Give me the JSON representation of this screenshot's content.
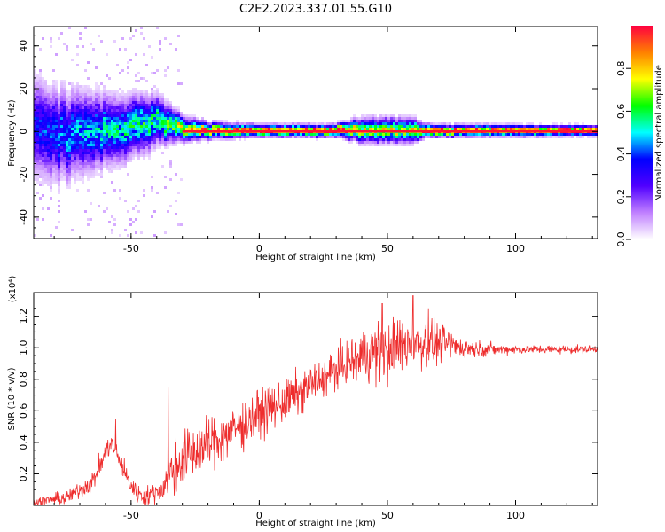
{
  "figure": {
    "title": "C2E2.2023.337.01.55.G10"
  },
  "chart_data": [
    {
      "type": "heatmap",
      "title": "",
      "xlabel": "Height of straight line (km)",
      "ylabel": "Frequency (Hz)",
      "xlim": [
        -88,
        132
      ],
      "ylim": [
        -50,
        49
      ],
      "x_ticks": [
        -50,
        0,
        50,
        100
      ],
      "y_ticks": [
        -40,
        -20,
        0,
        20,
        40
      ],
      "grid": false,
      "colorbar": {
        "label": "Normalized spectral amplitude",
        "range": [
          0,
          1
        ],
        "ticks": [
          "0.0",
          "0.2",
          "0.4",
          "0.6",
          "0.8"
        ],
        "colormap": [
          "#ffffff",
          "#c080ff",
          "#5000ff",
          "#0000ff",
          "#00ffff",
          "#00ff00",
          "#ffff00",
          "#ff8000",
          "#ff0040"
        ]
      },
      "ridge": [
        {
          "x": -88,
          "center": 0,
          "spread": 12,
          "peak": 0.35
        },
        {
          "x": -70,
          "center": -2,
          "spread": 10,
          "peak": 0.45
        },
        {
          "x": -55,
          "center": 0,
          "spread": 8,
          "peak": 0.5
        },
        {
          "x": -45,
          "center": 3,
          "spread": 7,
          "peak": 0.55
        },
        {
          "x": -40,
          "center": 5,
          "spread": 6,
          "peak": 0.55
        },
        {
          "x": -30,
          "center": 1,
          "spread": 3,
          "peak": 0.75
        },
        {
          "x": -20,
          "center": 0,
          "spread": 2,
          "peak": 0.85
        },
        {
          "x": 0,
          "center": 0,
          "spread": 1.5,
          "peak": 0.9
        },
        {
          "x": 30,
          "center": 0,
          "spread": 1.5,
          "peak": 0.95
        },
        {
          "x": 40,
          "center": 0,
          "spread": 3,
          "peak": 0.7
        },
        {
          "x": 60,
          "center": 0,
          "spread": 3,
          "peak": 0.7
        },
        {
          "x": 65,
          "center": 0,
          "spread": 1.5,
          "peak": 0.95
        },
        {
          "x": 132,
          "center": 0,
          "spread": 1.2,
          "peak": 1.0
        }
      ]
    },
    {
      "type": "line",
      "title": "",
      "xlabel": "Height of straight line (km)",
      "ylabel": "SNR (10 * v/v)",
      "y_multiplier_label": "(x10⁴)",
      "xlim": [
        -88,
        132
      ],
      "ylim": [
        0,
        1.35
      ],
      "x_ticks": [
        -50,
        0,
        50,
        100
      ],
      "y_ticks": [
        0.2,
        0.4,
        0.6,
        0.8,
        1.0,
        1.2
      ],
      "grid": false,
      "series": [
        {
          "color": "#ee2d2d",
          "baseline": [
            {
              "x": -88,
              "y": 0.02
            },
            {
              "x": -75,
              "y": 0.05
            },
            {
              "x": -65,
              "y": 0.15
            },
            {
              "x": -58,
              "y": 0.4
            },
            {
              "x": -55,
              "y": 0.3
            },
            {
              "x": -50,
              "y": 0.12
            },
            {
              "x": -45,
              "y": 0.05
            },
            {
              "x": -38,
              "y": 0.1
            },
            {
              "x": -35,
              "y": 0.2
            },
            {
              "x": -30,
              "y": 0.3
            },
            {
              "x": -20,
              "y": 0.38
            },
            {
              "x": -10,
              "y": 0.48
            },
            {
              "x": 0,
              "y": 0.58
            },
            {
              "x": 10,
              "y": 0.66
            },
            {
              "x": 20,
              "y": 0.76
            },
            {
              "x": 30,
              "y": 0.86
            },
            {
              "x": 40,
              "y": 0.95
            },
            {
              "x": 50,
              "y": 1.0
            },
            {
              "x": 60,
              "y": 1.03
            },
            {
              "x": 70,
              "y": 1.03
            },
            {
              "x": 80,
              "y": 1.0
            },
            {
              "x": 90,
              "y": 0.99
            },
            {
              "x": 110,
              "y": 0.99
            },
            {
              "x": 132,
              "y": 0.99
            }
          ],
          "noise": [
            {
              "x": -88,
              "amp": 0.02
            },
            {
              "x": -60,
              "amp": 0.06
            },
            {
              "x": -40,
              "amp": 0.05
            },
            {
              "x": -33,
              "amp": 0.15
            },
            {
              "x": 0,
              "amp": 0.12
            },
            {
              "x": 30,
              "amp": 0.1
            },
            {
              "x": 45,
              "amp": 0.16
            },
            {
              "x": 65,
              "amp": 0.13
            },
            {
              "x": 80,
              "amp": 0.05
            },
            {
              "x": 95,
              "amp": 0.025
            },
            {
              "x": 132,
              "amp": 0.02
            }
          ],
          "spikes": [
            {
              "x": -35.5,
              "y": 0.75
            },
            {
              "x": -56,
              "y": 0.55
            },
            {
              "x": 60,
              "y": 1.33
            },
            {
              "x": 48,
              "y": 1.28
            },
            {
              "x": 66,
              "y": 1.25
            },
            {
              "x": 50,
              "y": 0.75
            }
          ]
        }
      ]
    }
  ]
}
